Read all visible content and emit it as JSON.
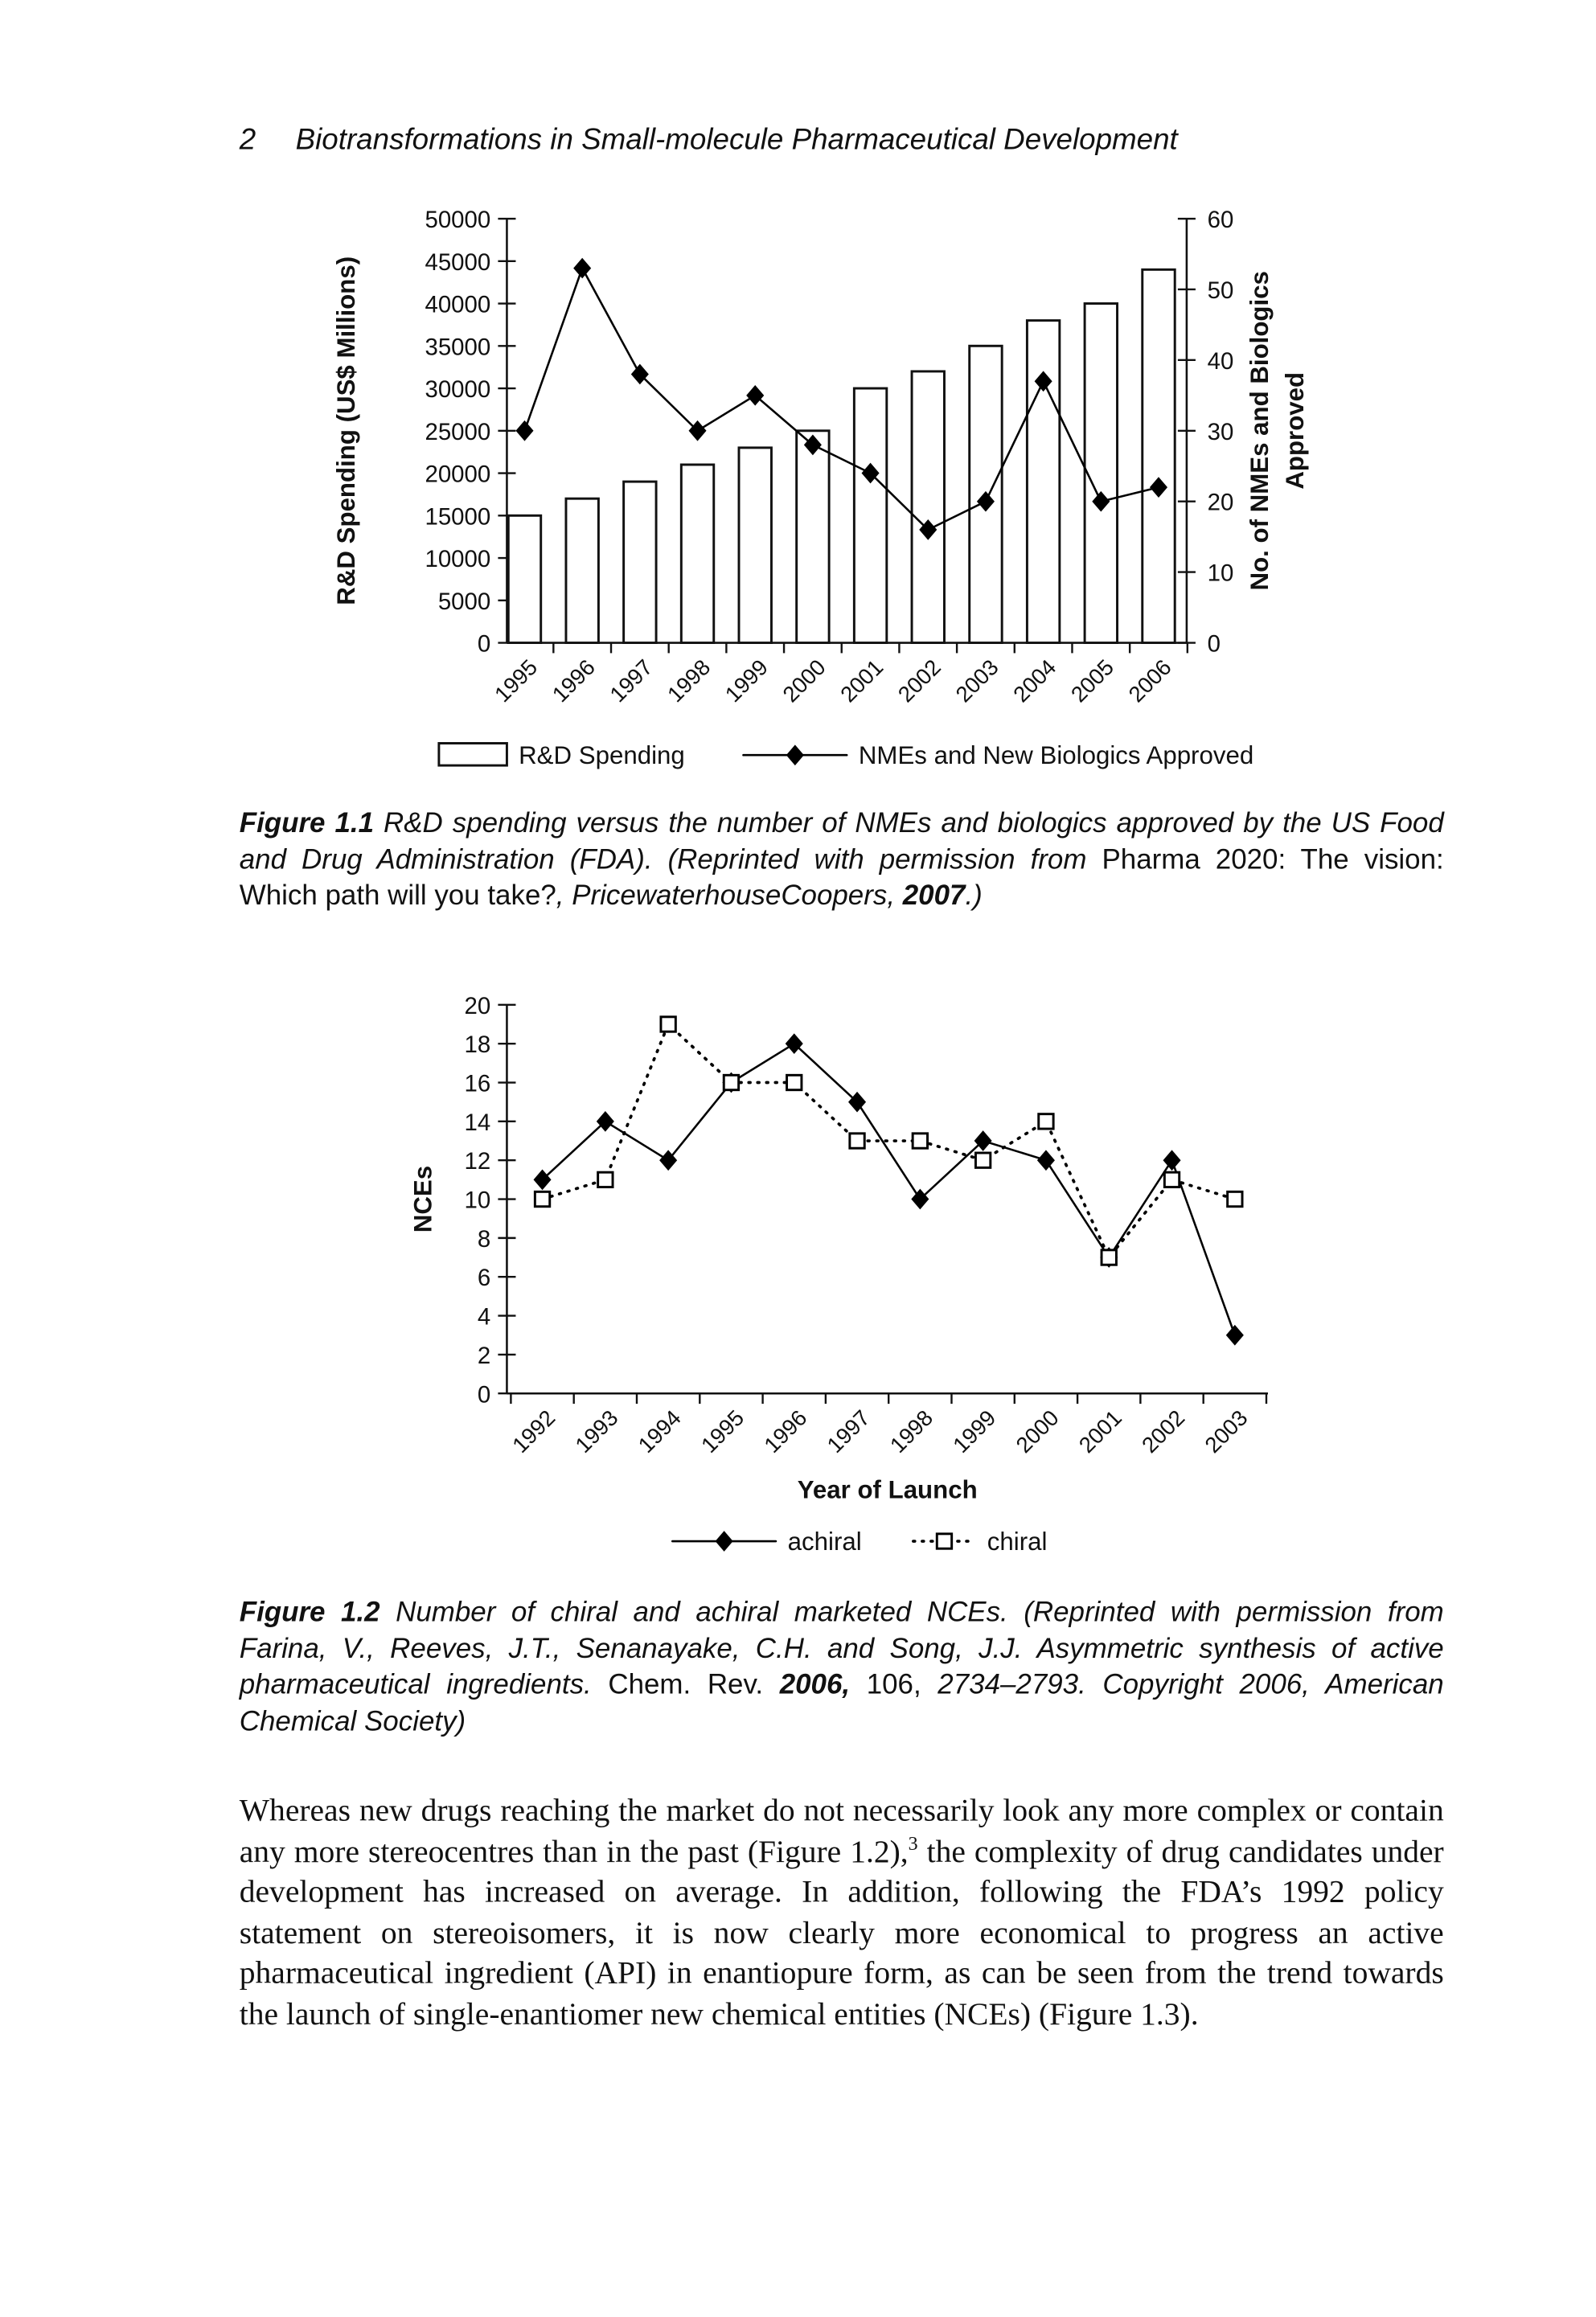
{
  "header": {
    "page_number": "2",
    "running_title": "Biotransformations in Small-molecule Pharmaceutical Development"
  },
  "chart_data": [
    {
      "type": "combo",
      "categories": [
        "1995",
        "1996",
        "1997",
        "1998",
        "1999",
        "2000",
        "2001",
        "2002",
        "2003",
        "2004",
        "2005",
        "2006"
      ],
      "ylabel": "R&D Spending (US$ Millions)",
      "y2label": [
        "No. of NMEs and Biologics",
        "Approved"
      ],
      "ylim": [
        0,
        50000
      ],
      "yticks": [
        0,
        5000,
        10000,
        15000,
        20000,
        25000,
        30000,
        35000,
        40000,
        45000,
        50000
      ],
      "y2lim": [
        0,
        60
      ],
      "y2ticks": [
        0,
        10,
        20,
        30,
        40,
        50,
        60
      ],
      "series": [
        {
          "name": "R&D Spending",
          "type": "bar",
          "color": "#ffffff",
          "values": [
            15000,
            17000,
            19000,
            21000,
            23000,
            25000,
            30000,
            32000,
            35000,
            38000,
            40000,
            44000
          ]
        },
        {
          "name": "NMEs and New Biologics Approved",
          "type": "line",
          "axis": "y2",
          "marker": "diamond",
          "color": "#000000",
          "values": [
            30,
            53,
            38,
            30,
            35,
            28,
            24,
            16,
            20,
            37,
            20,
            22
          ]
        }
      ]
    },
    {
      "type": "line",
      "categories": [
        "1992",
        "1993",
        "1994",
        "1995",
        "1996",
        "1997",
        "1998",
        "1999",
        "2000",
        "2001",
        "2002",
        "2003"
      ],
      "xlabel": "Year of Launch",
      "ylabel": "NCEs",
      "ylim": [
        0,
        20
      ],
      "yticks": [
        0,
        2,
        4,
        6,
        8,
        10,
        12,
        14,
        16,
        18,
        20
      ],
      "series": [
        {
          "name": "achiral",
          "type": "line",
          "marker": "diamond",
          "dash": false,
          "color": "#000000",
          "values": [
            11,
            14,
            12,
            16,
            18,
            15,
            10,
            13,
            12,
            7,
            12,
            3
          ]
        },
        {
          "name": "chiral",
          "type": "line",
          "marker": "square",
          "dash": true,
          "color": "#000000",
          "values": [
            10,
            11,
            19,
            16,
            16,
            13,
            13,
            12,
            14,
            7,
            11,
            10
          ]
        }
      ]
    }
  ],
  "captions": [
    {
      "runs": [
        "Figure 1.1",
        "R&D spending versus the number of NMEs and biologics approved by the US Food and Drug Administration (FDA). (Reprinted with permission from",
        "Pharma 2020: The vision: Which path will you take?",
        ", PricewaterhouseCoopers,",
        "2007",
        ".)"
      ]
    },
    {
      "runs": [
        "Figure 1.2",
        "Number of chiral and achiral marketed NCEs. (Reprinted with permission from Farina, V., Reeves, J.T., Senanayake, C.H. and Song, J.J. Asymmetric synthesis of active pharmaceutical ingredients.",
        "Chem. Rev.",
        "2006,",
        "106,",
        "2734–2793. Copyright 2006, American Chemical Society)"
      ]
    }
  ],
  "body": {
    "runs": [
      "Whereas new drugs reaching the market do not necessarily look any more complex or contain any more stereocentres than in the past (Figure 1.2),",
      "3",
      "the complexity of drug candidates under development has increased on average. In addition, following the FDA’s 1992 policy statement on stereoisomers, it is now clearly more economical to progress an active pharmaceutical ingredient (API) in enantiopure form, as can be seen from the trend towards the launch of single-enantiomer new chemical entities (NCEs) (Figure 1.3)."
    ]
  }
}
